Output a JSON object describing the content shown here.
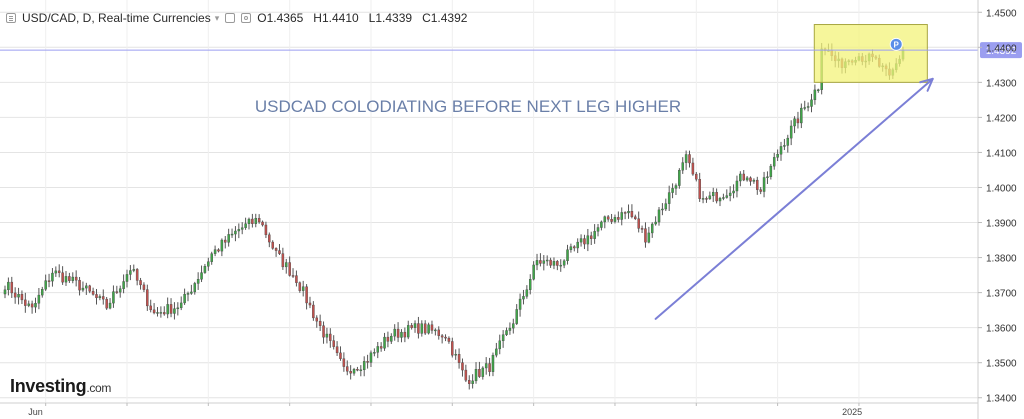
{
  "header": {
    "title": "USD/CAD, D, Real-time Currencies",
    "open": "O1.4365",
    "high": "H1.4410",
    "low": "L1.4339",
    "close": "C1.4392"
  },
  "annotation": {
    "text": "USDCAD COLODIATING BEFORE NEXT LEG HIGHER"
  },
  "logo": {
    "brand": "Investing",
    "suffix": ".com"
  },
  "colors": {
    "up": "#3fa548",
    "down": "#c0504d",
    "wick": "#555555",
    "price_line": "#9b9ef0",
    "price_tag_bg": "#9b9ef0",
    "annotation_text": "#6a7fa8",
    "arrow": "#7b7fd6",
    "highlight_fill": "#f3f37a",
    "highlight_stroke": "#a7a640",
    "grid": "#e4e4e4"
  },
  "chart_data": {
    "type": "candlestick",
    "y_axis_ticks": [
      "1.4500",
      "1.4400",
      "1.4300",
      "1.4200",
      "1.4100",
      "1.4000",
      "1.3900",
      "1.3800",
      "1.3700",
      "1.3600",
      "1.3500",
      "1.3400"
    ],
    "ylim": [
      1.3385,
      1.4535
    ],
    "x_axis_labels": [
      "Jun",
      "2025"
    ],
    "last_price_label": "1.4392",
    "last_price": 1.4392,
    "grid": true,
    "pivot_points": [
      [
        0,
        1.3725
      ],
      [
        8,
        1.365
      ],
      [
        14,
        1.376
      ],
      [
        22,
        1.372
      ],
      [
        30,
        1.366
      ],
      [
        37,
        1.377
      ],
      [
        44,
        1.364
      ],
      [
        52,
        1.3665
      ],
      [
        61,
        1.381
      ],
      [
        69,
        1.388
      ],
      [
        75,
        1.391
      ],
      [
        80,
        1.381
      ],
      [
        86,
        1.374
      ],
      [
        92,
        1.362
      ],
      [
        100,
        1.348
      ],
      [
        106,
        1.35
      ],
      [
        114,
        1.358
      ],
      [
        122,
        1.36
      ],
      [
        130,
        1.358
      ],
      [
        136,
        1.345
      ],
      [
        143,
        1.349
      ],
      [
        150,
        1.362
      ],
      [
        157,
        1.379
      ],
      [
        163,
        1.378
      ],
      [
        170,
        1.384
      ],
      [
        178,
        1.391
      ],
      [
        184,
        1.393
      ],
      [
        189,
        1.386
      ],
      [
        196,
        1.398
      ],
      [
        201,
        1.408
      ],
      [
        206,
        1.396
      ],
      [
        213,
        1.399
      ],
      [
        219,
        1.404
      ],
      [
        223,
        1.399
      ],
      [
        229,
        1.412
      ],
      [
        233,
        1.418
      ],
      [
        238,
        1.426
      ],
      [
        240,
        1.429
      ],
      [
        241,
        1.441
      ],
      [
        246,
        1.435
      ],
      [
        251,
        1.438
      ],
      [
        257,
        1.436
      ],
      [
        261,
        1.431
      ],
      [
        265,
        1.4392
      ]
    ],
    "candles_count": 266,
    "highlight_box": {
      "x_from": 240,
      "x_to": 271,
      "y_from": 1.43,
      "y_to": 1.4465
    },
    "trend_arrow": {
      "from": [
        192,
        1.3625
      ],
      "to": [
        272,
        1.431
      ]
    },
    "marker": {
      "label": "P",
      "x": 263,
      "price": 1.438
    }
  }
}
